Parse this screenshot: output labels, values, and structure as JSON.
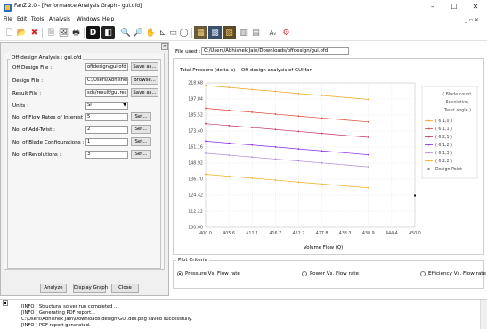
{
  "window": {
    "title": "FanZ 2.0 - [Performance Analysis Graph - gui.ofd]",
    "minimize": "–",
    "maximize": "☐",
    "close": "✕"
  },
  "menu": [
    "File",
    "Edit",
    "Tools",
    "Analysis",
    "Windows",
    "Help"
  ],
  "mdi_controls": "_ ▫ ✕",
  "toolbar": {
    "icons": [
      "new-file-icon",
      "open-folder-icon",
      "delete-x-icon",
      "document-icon",
      "image-icon",
      "print-icon",
      "d-badge-icon",
      "dark-panel-icon",
      "zoom-icon",
      "zoom-out-icon",
      "pan-icon",
      "axis-icon",
      "rectangle-icon",
      "circle-icon",
      "blade-image-icon",
      "machine-image-icon",
      "gear-image-icon",
      "chart-thumb-icon",
      "table-thumb-icon",
      "text-style-icon",
      "settings-icon"
    ],
    "glyphs": [
      "🗋",
      "📂",
      "✖",
      "🗎",
      "🖼",
      "🖶",
      "D",
      "◧",
      "🔍",
      "🔎",
      "✋",
      "⊾",
      "▭",
      "◯",
      "▦",
      "▩",
      "▧",
      "▥",
      "▤",
      "Aᵥ",
      "⚙"
    ]
  },
  "left_panel": {
    "group_title": "Off-design Analysis : gui.ofd",
    "fields": [
      {
        "label": "Off Design File :",
        "value": "offdesign/gui.ofd",
        "button": "Save as..."
      },
      {
        "label": "Design File :",
        "value": "C:/Users/Abhishek",
        "button": "Browse..."
      },
      {
        "label": "Result File :",
        "value": "sds/result/gui.res",
        "button": "Save as..."
      }
    ],
    "units_label": "Units :",
    "units_value": "SI",
    "rows": [
      {
        "label": "No. of Flow Rates of Interest :",
        "value": "5",
        "button": "Set..."
      },
      {
        "label": "No. of Add-Twist :",
        "value": "2",
        "button": "Set..."
      },
      {
        "label": "No. of Blade Configurations :",
        "value": "1",
        "button": "Set..."
      },
      {
        "label": "No. of Revolutions :",
        "value": "3",
        "button": "Set..."
      }
    ],
    "buttons": {
      "analyze": "Analyze",
      "display_graph": "Display Graph",
      "close": "Close"
    }
  },
  "right_panel": {
    "file_used_label": "File used :",
    "file_used_value": "C:/Users/Abhishek Jain/Downloads/offdesign/gui.ofd",
    "plot_criteria_title": "Plot Criteria",
    "options": [
      {
        "label": "Pressure Vs. Flow rate",
        "selected": true
      },
      {
        "label": "Power Vs. Flow rate",
        "selected": false
      },
      {
        "label": "Efficiency Vs. Flow rate",
        "selected": false
      }
    ]
  },
  "chart_data": {
    "type": "line",
    "title": "Off-design analysis of GUI.fan",
    "ylabel": "Total Pressure (delta-p)",
    "xlabel": "Volume Flow (Q)",
    "x_ticks": [
      "400.0",
      "405.6",
      "411.1",
      "416.7",
      "422.2",
      "427.8",
      "433.3",
      "438.9",
      "444.4",
      "450.0"
    ],
    "y_ticks": [
      "218.68",
      "197.84",
      "185.52",
      "173.40",
      "161.16",
      "148.92",
      "136.70",
      "124.42",
      "112.22",
      "100.00"
    ],
    "xlim": [
      400.0,
      450.0
    ],
    "ylim": [
      100.0,
      218.68
    ],
    "x": [
      400.0,
      405.6,
      411.1,
      416.7,
      422.2,
      427.8,
      433.3,
      438.9
    ],
    "grid": true,
    "legend_position": "right",
    "legend_header": [
      "( Blade count,",
      "Revolution,",
      "Twist angle )"
    ],
    "series": [
      {
        "name": "( 6,1,0 )",
        "color": "#f5a623",
        "y": [
          216.5,
          214.9,
          213.3,
          211.7,
          210.0,
          208.4,
          206.8,
          205.2
        ]
      },
      {
        "name": "( 6,1,1 )",
        "color": "#d9473b",
        "y": [
          197.8,
          196.2,
          194.6,
          193.0,
          191.4,
          189.8,
          188.2,
          186.6
        ]
      },
      {
        "name": "( 6,2,1 )",
        "color": "#c0306b",
        "y": [
          185.2,
          183.6,
          182.0,
          180.4,
          178.8,
          177.2,
          175.6,
          174.0
        ]
      },
      {
        "name": "( 6,1,2 )",
        "color": "#8a2be2",
        "y": [
          170.8,
          169.2,
          167.6,
          166.0,
          164.4,
          162.8,
          161.2,
          159.6
        ]
      },
      {
        "name": "( 6,1,3 )",
        "color": "#b58cd8",
        "y": [
          160.9,
          159.3,
          157.7,
          156.1,
          154.5,
          152.9,
          151.3,
          149.7
        ]
      },
      {
        "name": "( 6,2,2 )",
        "color": "#f0b020",
        "y": [
          143.6,
          142.0,
          140.4,
          138.8,
          137.2,
          135.6,
          134.0,
          132.4
        ]
      }
    ],
    "design_point": {
      "name": "Design Point",
      "x": 450.0,
      "y": 126.0
    }
  },
  "log": [
    "[INFO ] Structural solver run completed ...",
    "[INFO ] Generating PDF report...",
    "C:\\Users\\Abhishek Jain\\Downloads\\design\\GUI.des.png saved successfully.",
    "[INFO ] PDF report generated."
  ]
}
